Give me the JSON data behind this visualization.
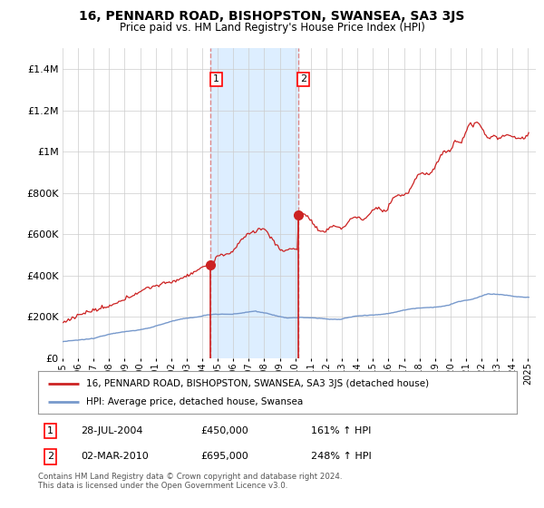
{
  "title": "16, PENNARD ROAD, BISHOPSTON, SWANSEA, SA3 3JS",
  "subtitle": "Price paid vs. HM Land Registry's House Price Index (HPI)",
  "legend_red": "16, PENNARD ROAD, BISHOPSTON, SWANSEA, SA3 3JS (detached house)",
  "legend_blue": "HPI: Average price, detached house, Swansea",
  "footnote": "Contains HM Land Registry data © Crown copyright and database right 2024.\nThis data is licensed under the Open Government Licence v3.0.",
  "sale1_date": "28-JUL-2004",
  "sale1_price": 450000,
  "sale1_pct": "161%",
  "sale2_date": "02-MAR-2010",
  "sale2_price": 695000,
  "sale2_pct": "248%",
  "ylim": [
    0,
    1500000
  ],
  "yticks": [
    0,
    200000,
    400000,
    600000,
    800000,
    1000000,
    1200000,
    1400000
  ],
  "ytick_labels": [
    "£0",
    "£200K",
    "£400K",
    "£600K",
    "£800K",
    "£1M",
    "£1.2M",
    "£1.4M"
  ],
  "xmin": 1995,
  "xmax": 2025.5,
  "shade_color": "#ddeeff",
  "grid_color": "#cccccc",
  "red_color": "#cc2222",
  "blue_color": "#7799cc",
  "dash_color": "#dd8888",
  "sale1_x": 2004.542,
  "sale2_x": 2010.167,
  "sale1_y": 450000,
  "sale2_y": 695000
}
